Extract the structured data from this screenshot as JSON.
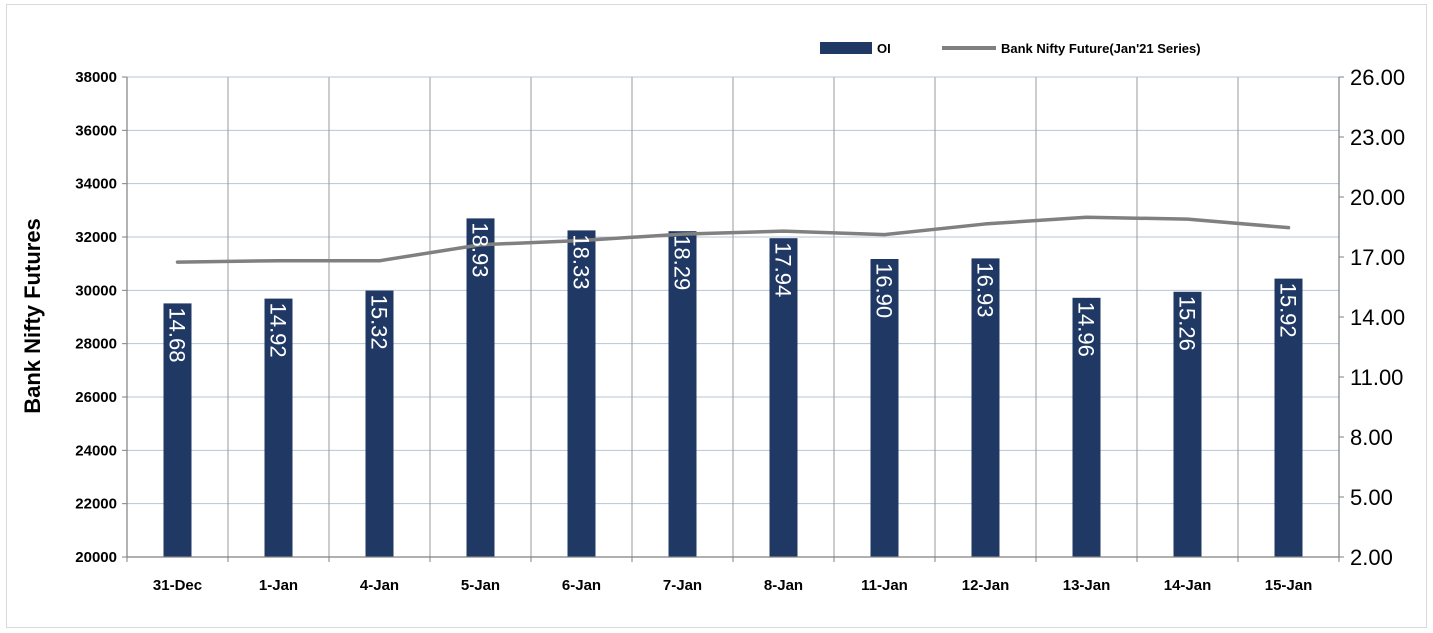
{
  "chart_data": {
    "type": "bar",
    "title": "",
    "categories": [
      "31-Dec",
      "1-Jan",
      "4-Jan",
      "5-Jan",
      "6-Jan",
      "7-Jan",
      "8-Jan",
      "11-Jan",
      "12-Jan",
      "13-Jan",
      "14-Jan",
      "15-Jan"
    ],
    "ylabel": "Bank Nifty Futures",
    "left_axis": {
      "min": 20000,
      "max": 38000,
      "step": 2000,
      "ticks": [
        "20000",
        "22000",
        "24000",
        "26000",
        "28000",
        "30000",
        "32000",
        "34000",
        "36000",
        "38000"
      ]
    },
    "right_axis": {
      "min": 2.0,
      "max": 26.0,
      "step": 3.0,
      "ticks": [
        "2.00",
        "5.00",
        "8.00",
        "11.00",
        "14.00",
        "17.00",
        "20.00",
        "23.00",
        "26.00"
      ]
    },
    "grid": true,
    "legend_position": "top-right",
    "series": [
      {
        "name": "OI",
        "kind": "bar",
        "axis": "right",
        "color": "#1f3864",
        "values": [
          14.68,
          14.92,
          15.32,
          18.93,
          18.33,
          18.29,
          17.94,
          16.9,
          16.93,
          14.96,
          15.26,
          15.92
        ],
        "labels": [
          "14.68",
          "14.92",
          "15.32",
          "18.93",
          "18.33",
          "18.29",
          "17.94",
          "16.90",
          "16.93",
          "14.96",
          "15.26",
          "15.92"
        ]
      },
      {
        "name": "Bank Nifty Future(Jan'21 Series)",
        "kind": "line",
        "axis": "left",
        "color": "#808080",
        "values": [
          31060,
          31110,
          31110,
          31710,
          31870,
          32110,
          32220,
          32090,
          32490,
          32740,
          32670,
          32350
        ]
      }
    ]
  }
}
